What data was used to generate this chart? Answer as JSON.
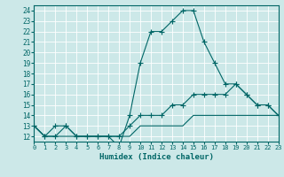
{
  "title": "",
  "xlabel": "Humidex (Indice chaleur)",
  "bg_color": "#cce8e8",
  "grid_color": "#aacccc",
  "line_color": "#006666",
  "x": [
    0,
    1,
    2,
    3,
    4,
    5,
    6,
    7,
    8,
    9,
    10,
    11,
    12,
    13,
    14,
    15,
    16,
    17,
    18,
    19,
    20,
    21,
    22,
    23
  ],
  "line1": [
    13,
    12,
    13,
    13,
    12,
    12,
    12,
    12,
    11,
    14,
    19,
    22,
    22,
    23,
    24,
    24,
    21,
    19,
    17,
    17,
    16,
    15,
    15,
    14
  ],
  "line2": [
    13,
    12,
    12,
    13,
    12,
    12,
    12,
    12,
    12,
    13,
    14,
    14,
    14,
    15,
    15,
    16,
    16,
    16,
    16,
    17,
    16,
    15,
    15,
    14
  ],
  "line3": [
    13,
    12,
    12,
    12,
    12,
    12,
    12,
    12,
    12,
    12,
    13,
    13,
    13,
    13,
    13,
    14,
    14,
    14,
    14,
    14,
    14,
    14,
    14,
    14
  ],
  "ylim": [
    11.5,
    24.5
  ],
  "xlim": [
    0,
    23
  ],
  "yticks": [
    12,
    13,
    14,
    15,
    16,
    17,
    18,
    19,
    20,
    21,
    22,
    23,
    24
  ],
  "xticks": [
    0,
    1,
    2,
    3,
    4,
    5,
    6,
    7,
    8,
    9,
    10,
    11,
    12,
    13,
    14,
    15,
    16,
    17,
    18,
    19,
    20,
    21,
    22,
    23
  ]
}
